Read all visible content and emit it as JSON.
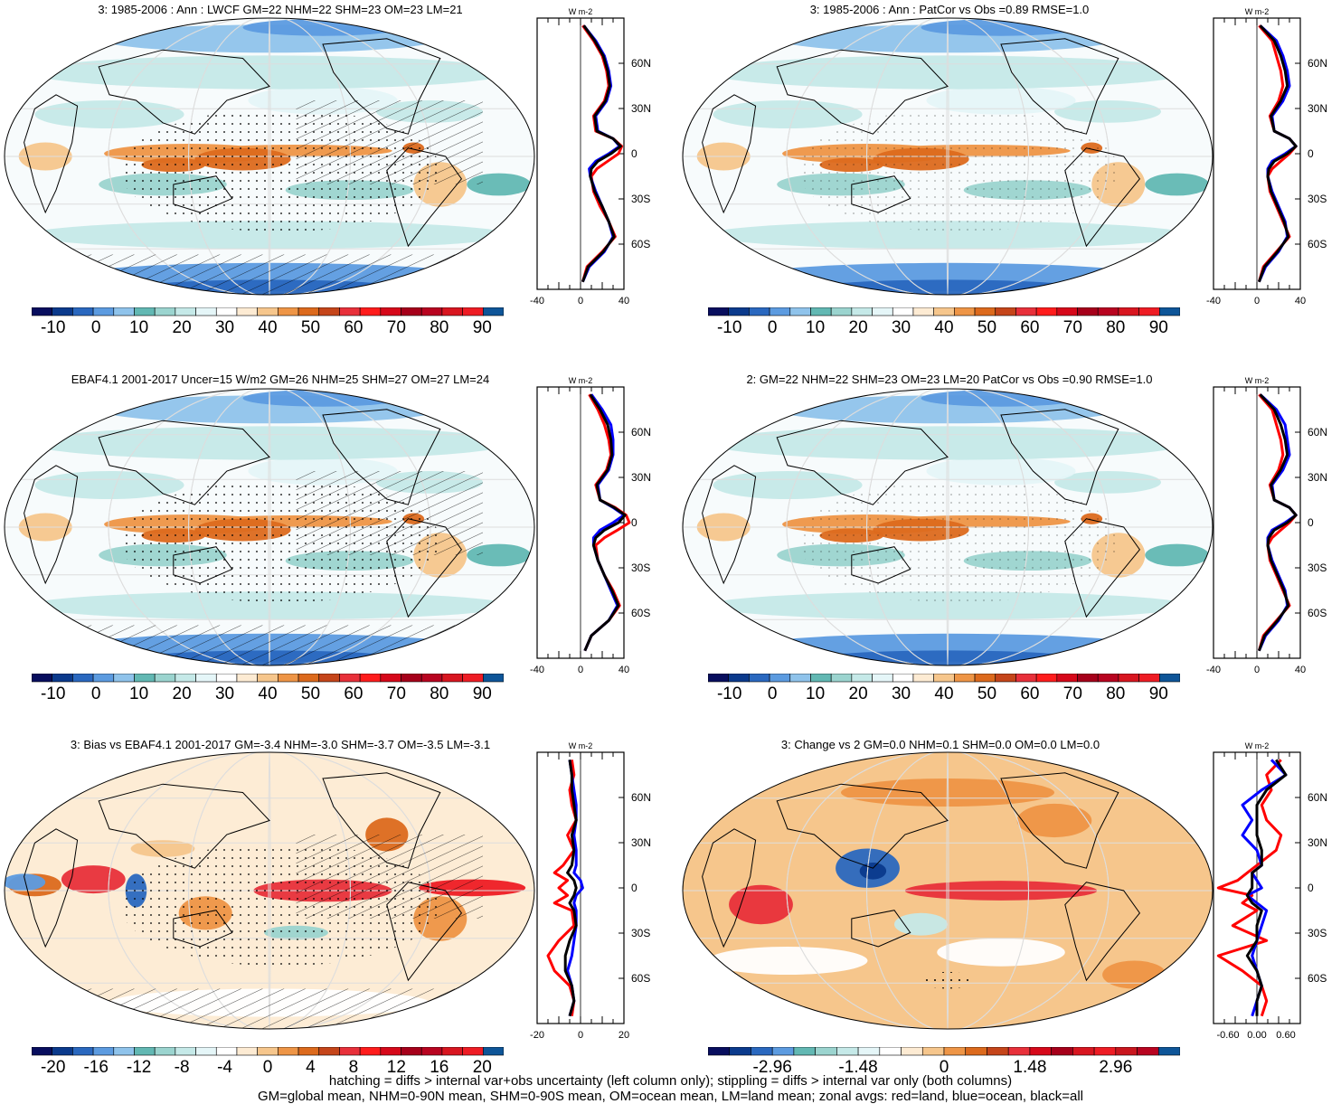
{
  "figure": {
    "footer_line1": "hatching = diffs > internal var+obs uncertainty (left column only); stippling = diffs > internal var only (both columns)",
    "footer_line2": "GM=global mean, NHM=0-90N mean, SHM=0-90S mean, OM=ocean mean, LM=land mean; zonal avgs: red=land, blue=ocean, black=all"
  },
  "chart_data": [
    {
      "type": "heatmap",
      "title": "3: 1985-2006 : Ann : LWCF GM=22 NHM=22 SHM=23 OM=23 LM=21",
      "colorbar_labels": [
        "-10",
        "0",
        "10",
        "20",
        "30",
        "40",
        "50",
        "60",
        "70",
        "80",
        "90"
      ],
      "colorbar_range": [
        -15,
        95
      ],
      "zonal": {
        "unit": "W m-2",
        "xlim": [
          -40,
          40
        ],
        "xticks": [
          "-40",
          "0",
          "40"
        ],
        "ylim": [
          -90,
          90
        ],
        "lat_labels": [
          "60N",
          "30N",
          "0",
          "30S",
          "60S"
        ],
        "lat": [
          85,
          75,
          65,
          55,
          45,
          35,
          25,
          15,
          10,
          5,
          0,
          -5,
          -10,
          -15,
          -25,
          -35,
          -45,
          -55,
          -65,
          -75,
          -85
        ],
        "series": [
          {
            "name": "land",
            "color": "#ff0000",
            "values": [
              2,
              12,
              20,
              24,
              26,
              22,
              12,
              14,
              30,
              38,
              35,
              25,
              15,
              10,
              12,
              18,
              26,
              32,
              20,
              6,
              2
            ]
          },
          {
            "name": "ocean",
            "color": "#0000ff",
            "values": [
              3,
              14,
              22,
              26,
              28,
              24,
              14,
              16,
              30,
              36,
              26,
              14,
              8,
              9,
              14,
              20,
              26,
              30,
              22,
              8,
              2
            ]
          },
          {
            "name": "all",
            "color": "#000000",
            "values": [
              3,
              13,
              21,
              25,
              27,
              23,
              13,
              15,
              30,
              37,
              28,
              16,
              10,
              9,
              13,
              20,
              26,
              31,
              21,
              7,
              2
            ]
          }
        ]
      }
    },
    {
      "type": "heatmap",
      "title": "3: 1985-2006 : Ann : PatCor vs Obs =0.89 RMSE=1.0",
      "colorbar_labels": [
        "-10",
        "0",
        "10",
        "20",
        "30",
        "40",
        "50",
        "60",
        "70",
        "80",
        "90"
      ],
      "colorbar_range": [
        -15,
        95
      ],
      "zonal": {
        "unit": "W m-2",
        "xlim": [
          -40,
          40
        ],
        "xticks": [
          "-40",
          "0",
          "40"
        ],
        "ylim": [
          -90,
          90
        ],
        "lat_labels": [
          "60N",
          "30N",
          "0",
          "30S",
          "60S"
        ],
        "lat": [
          85,
          75,
          65,
          55,
          45,
          35,
          25,
          15,
          10,
          5,
          0,
          -5,
          -10,
          -15,
          -25,
          -35,
          -45,
          -55,
          -65,
          -75,
          -85
        ],
        "series": [
          {
            "name": "land",
            "color": "#ff0000",
            "values": [
              2,
              14,
              18,
              22,
              24,
              20,
              12,
              16,
              30,
              36,
              30,
              22,
              14,
              10,
              12,
              18,
              24,
              30,
              18,
              6,
              2
            ]
          },
          {
            "name": "ocean",
            "color": "#0000ff",
            "values": [
              3,
              18,
              24,
              28,
              30,
              24,
              14,
              16,
              30,
              36,
              26,
              14,
              10,
              10,
              14,
              20,
              26,
              28,
              20,
              8,
              2
            ]
          },
          {
            "name": "all",
            "color": "#000000",
            "values": [
              3,
              16,
              22,
              26,
              28,
              22,
              13,
              16,
              30,
              36,
              28,
              16,
              11,
              10,
              13,
              19,
              25,
              29,
              19,
              7,
              2
            ]
          }
        ]
      }
    },
    {
      "type": "heatmap",
      "title": "EBAF4.1 2001-2017 Uncer=15 W/m2 GM=26 NHM=25 SHM=27 OM=27 LM=24",
      "colorbar_labels": [
        "-10",
        "0",
        "10",
        "20",
        "30",
        "40",
        "50",
        "60",
        "70",
        "80",
        "90"
      ],
      "colorbar_range": [
        -15,
        95
      ],
      "zonal": {
        "unit": "W m-2",
        "xlim": [
          -40,
          40
        ],
        "xticks": [
          "-40",
          "0",
          "40"
        ],
        "ylim": [
          -90,
          90
        ],
        "lat_labels": [
          "60N",
          "30N",
          "0",
          "30S",
          "60S"
        ],
        "lat": [
          85,
          75,
          65,
          55,
          45,
          35,
          25,
          15,
          10,
          5,
          0,
          -5,
          -10,
          -15,
          -25,
          -35,
          -45,
          -55,
          -65,
          -75,
          -85
        ],
        "series": [
          {
            "name": "land",
            "color": "#ff0000",
            "values": [
              8,
              16,
              22,
              26,
              28,
              24,
              14,
              18,
              32,
              42,
              45,
              34,
              22,
              14,
              16,
              22,
              30,
              36,
              26,
              10,
              4
            ]
          },
          {
            "name": "ocean",
            "color": "#0000ff",
            "values": [
              10,
              20,
              28,
              30,
              30,
              26,
              16,
              18,
              30,
              40,
              30,
              18,
              12,
              12,
              16,
              22,
              28,
              34,
              26,
              10,
              4
            ]
          },
          {
            "name": "all",
            "color": "#000000",
            "values": [
              9,
              18,
              25,
              28,
              29,
              25,
              15,
              18,
              31,
              41,
              35,
              22,
              14,
              12,
              16,
              22,
              29,
              35,
              26,
              10,
              4
            ]
          }
        ]
      }
    },
    {
      "type": "heatmap",
      "title": "2: GM=22 NHM=22 SHM=23 OM=23 LM=20 PatCor vs Obs =0.90 RMSE=1.0",
      "colorbar_labels": [
        "-10",
        "0",
        "10",
        "20",
        "30",
        "40",
        "50",
        "60",
        "70",
        "80",
        "90"
      ],
      "colorbar_range": [
        -15,
        95
      ],
      "zonal": {
        "unit": "W m-2",
        "xlim": [
          -40,
          40
        ],
        "xticks": [
          "-40",
          "0",
          "40"
        ],
        "ylim": [
          -90,
          90
        ],
        "lat_labels": [
          "60N",
          "30N",
          "0",
          "30S",
          "60S"
        ],
        "lat": [
          85,
          75,
          65,
          55,
          45,
          35,
          25,
          15,
          10,
          5,
          0,
          -5,
          -10,
          -15,
          -25,
          -35,
          -45,
          -55,
          -65,
          -75,
          -85
        ],
        "series": [
          {
            "name": "land",
            "color": "#ff0000",
            "values": [
              2,
              14,
              18,
              22,
              24,
              20,
              12,
              16,
              30,
              36,
              30,
              22,
              14,
              10,
              12,
              18,
              24,
              30,
              18,
              6,
              2
            ]
          },
          {
            "name": "ocean",
            "color": "#0000ff",
            "values": [
              3,
              18,
              26,
              28,
              30,
              24,
              14,
              16,
              30,
              36,
              26,
              14,
              10,
              10,
              14,
              20,
              26,
              28,
              20,
              8,
              2
            ]
          },
          {
            "name": "all",
            "color": "#000000",
            "values": [
              3,
              16,
              22,
              26,
              28,
              22,
              13,
              16,
              30,
              36,
              28,
              16,
              11,
              10,
              13,
              19,
              25,
              29,
              19,
              7,
              2
            ]
          }
        ]
      }
    },
    {
      "type": "heatmap",
      "title": "3: Bias vs EBAF4.1 2001-2017 GM=-3.4 NHM=-3.0 SHM=-3.7 OM=-3.5 LM=-3.1",
      "colorbar_labels": [
        "-20",
        "-16",
        "-12",
        "-8",
        "-4",
        "0",
        "4",
        "8",
        "12",
        "16",
        "20"
      ],
      "colorbar_range": [
        -22,
        22
      ],
      "zonal": {
        "unit": "W m-2",
        "xlim": [
          -20,
          20
        ],
        "xticks": [
          "-20",
          "0",
          "20"
        ],
        "ylim": [
          -90,
          90
        ],
        "lat_labels": [
          "60N",
          "30N",
          "0",
          "30S",
          "60S"
        ],
        "lat": [
          85,
          75,
          65,
          55,
          45,
          35,
          25,
          15,
          10,
          5,
          0,
          -5,
          -10,
          -15,
          -25,
          -35,
          -45,
          -55,
          -65,
          -75,
          -85
        ],
        "series": [
          {
            "name": "land",
            "color": "#ff0000",
            "values": [
              -4,
              -3,
              -5,
              -4,
              -2,
              -6,
              -3,
              -8,
              -12,
              -6,
              -10,
              -6,
              -12,
              -4,
              -3,
              -10,
              -15,
              -12,
              -5,
              -3,
              -4
            ]
          },
          {
            "name": "ocean",
            "color": "#0000ff",
            "values": [
              -5,
              -4,
              -3,
              -2,
              -2,
              -3,
              -2,
              -2,
              -3,
              0,
              1,
              -2,
              -3,
              -2,
              -2,
              -3,
              -4,
              -6,
              -4,
              -3,
              -5
            ]
          },
          {
            "name": "all",
            "color": "#000000",
            "values": [
              -5,
              -4,
              -4,
              -3,
              -2,
              -4,
              -3,
              -4,
              -6,
              -3,
              -2,
              -3,
              -5,
              -3,
              -2,
              -5,
              -7,
              -7,
              -4,
              -3,
              -5
            ]
          }
        ]
      }
    },
    {
      "type": "heatmap",
      "title": "3: Change vs 2 GM=0.0 NHM=0.1 SHM=0.0 OM=0.0 LM=0.0",
      "colorbar_labels": [
        "-2.96",
        "-1.48",
        "0",
        "1.48",
        "2.96"
      ],
      "colorbar_range": [
        -4.07,
        4.07
      ],
      "zonal": {
        "unit": "W m-2",
        "xlim": [
          -0.9,
          0.9
        ],
        "xticks": [
          "-0.60",
          "0.00",
          "0.60"
        ],
        "ylim": [
          -90,
          90
        ],
        "lat_labels": [
          "60N",
          "30N",
          "0",
          "30S",
          "60S"
        ],
        "lat": [
          85,
          75,
          65,
          55,
          45,
          35,
          25,
          15,
          10,
          5,
          0,
          -5,
          -10,
          -15,
          -25,
          -35,
          -45,
          -55,
          -65,
          -75,
          -85
        ],
        "series": [
          {
            "name": "land",
            "color": "#ff0000",
            "values": [
              0.5,
              0.2,
              0.3,
              0.1,
              0.2,
              0.5,
              0.4,
              0.0,
              -0.2,
              -0.4,
              -0.8,
              -0.1,
              -0.3,
              0.0,
              -0.5,
              0.2,
              -0.8,
              -0.3,
              0.1,
              0.2,
              0.1
            ]
          },
          {
            "name": "ocean",
            "color": "#0000ff",
            "values": [
              0.3,
              0.6,
              0.1,
              -0.3,
              -0.1,
              -0.3,
              0.0,
              0.1,
              -0.1,
              0.0,
              0.1,
              -0.2,
              0.0,
              0.2,
              0.1,
              0.0,
              -0.1,
              0.0,
              0.1,
              0.0,
              -0.1
            ]
          },
          {
            "name": "all",
            "color": "#000000",
            "values": [
              0.4,
              0.6,
              0.2,
              0.0,
              0.0,
              0.0,
              0.1,
              0.1,
              -0.1,
              -0.1,
              -0.1,
              -0.2,
              -0.1,
              0.1,
              0.0,
              0.0,
              -0.2,
              0.0,
              0.1,
              0.0,
              0.0
            ]
          }
        ]
      }
    }
  ]
}
